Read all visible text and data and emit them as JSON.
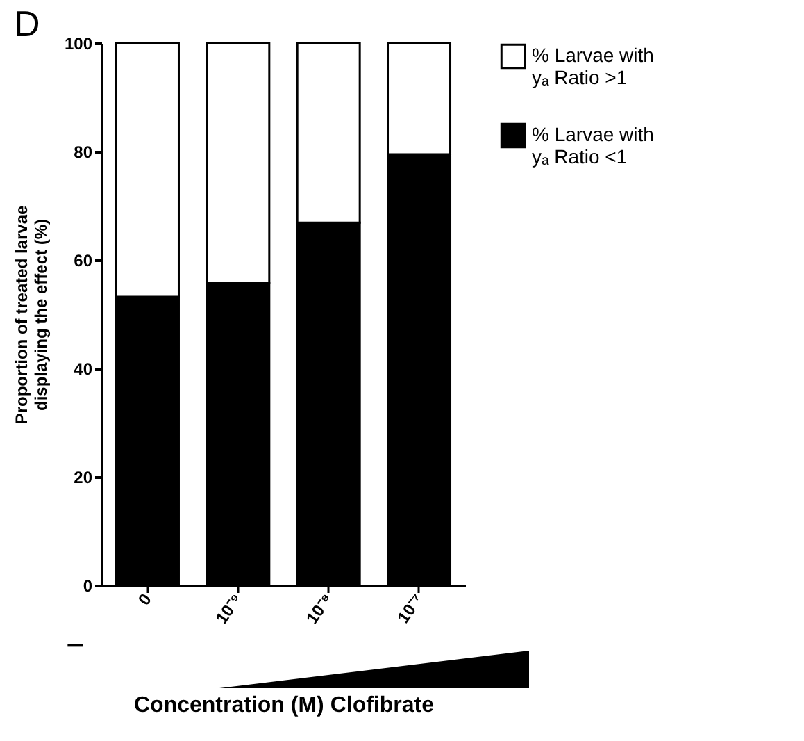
{
  "chart_data": {
    "type": "bar",
    "stacked": true,
    "categories": [
      "0",
      "10⁻⁹",
      "10⁻⁸",
      "10⁻⁷"
    ],
    "series": [
      {
        "name": "% Larvae with yₐ Ratio <1",
        "color": "#000000",
        "values": [
          53.2,
          55.7,
          66.9,
          79.5
        ]
      },
      {
        "name": "% Larvae with yₐ Ratio >1",
        "color": "#ffffff",
        "values": [
          46.8,
          44.3,
          33.1,
          20.5
        ]
      }
    ],
    "xlabel": "Concentration (M) Clofibrate",
    "ylabel": "Proportion of treated larvae\ndisplaying the effect (%)",
    "ylim": [
      0,
      100
    ],
    "yticks": [
      0,
      20,
      40,
      60,
      80,
      100
    ],
    "grid": false,
    "legend": "right",
    "annotations": [
      "D",
      "–"
    ]
  }
}
